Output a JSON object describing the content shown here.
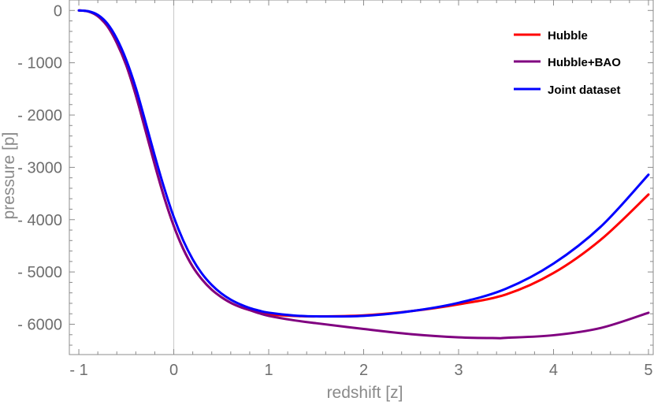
{
  "chart_data": {
    "type": "line",
    "title": "",
    "xlabel": "redshift [z]",
    "ylabel": "pressure [p]",
    "xlim": [
      -1.1,
      5.05
    ],
    "ylim": [
      -6580,
      200
    ],
    "x_ticks": [
      -1,
      0,
      1,
      2,
      3,
      4,
      5
    ],
    "x_tick_labels": [
      "- 1",
      "0",
      "1",
      "2",
      "3",
      "4",
      "5"
    ],
    "y_ticks": [
      0,
      -1000,
      -2000,
      -3000,
      -4000,
      -5000,
      -6000
    ],
    "y_tick_labels": [
      "0",
      "- 1000",
      "- 2000",
      "- 3000",
      "- 4000",
      "- 5000",
      "- 6000"
    ],
    "grid": false,
    "legend_position": "top-right",
    "series": [
      {
        "name": "Hubble",
        "color": "#ff0000",
        "x": [
          -1,
          -0.9,
          -0.8,
          -0.7,
          -0.6,
          -0.5,
          -0.4,
          -0.3,
          -0.2,
          -0.1,
          0,
          0.1,
          0.2,
          0.3,
          0.4,
          0.5,
          0.6,
          0.7,
          0.8,
          0.9,
          1.0,
          1.25,
          1.5,
          2.0,
          2.5,
          3.0,
          3.5,
          4.0,
          4.5,
          5.0
        ],
        "y": [
          0,
          -20,
          -110,
          -300,
          -620,
          -1050,
          -1620,
          -2280,
          -2950,
          -3580,
          -4120,
          -4560,
          -4900,
          -5150,
          -5340,
          -5480,
          -5590,
          -5670,
          -5730,
          -5775,
          -5810,
          -5840,
          -5850,
          -5830,
          -5750,
          -5620,
          -5430,
          -5020,
          -4380,
          -3520
        ]
      },
      {
        "name": "Hubble+BAO",
        "color": "#800080",
        "x": [
          -1,
          -0.9,
          -0.8,
          -0.7,
          -0.6,
          -0.5,
          -0.4,
          -0.3,
          -0.2,
          -0.1,
          0,
          0.1,
          0.2,
          0.3,
          0.4,
          0.5,
          0.6,
          0.7,
          0.8,
          0.9,
          1.0,
          1.25,
          1.5,
          2.0,
          2.5,
          3.0,
          3.4,
          3.5,
          4.0,
          4.5,
          5.0
        ],
        "y": [
          0,
          -20,
          -110,
          -300,
          -620,
          -1050,
          -1620,
          -2280,
          -2950,
          -3580,
          -4120,
          -4560,
          -4900,
          -5150,
          -5340,
          -5480,
          -5590,
          -5670,
          -5730,
          -5790,
          -5840,
          -5920,
          -5980,
          -6090,
          -6190,
          -6250,
          -6265,
          -6260,
          -6210,
          -6070,
          -5780
        ]
      },
      {
        "name": "Joint dataset",
        "color": "#0000ff",
        "x": [
          -1,
          -0.9,
          -0.8,
          -0.7,
          -0.6,
          -0.5,
          -0.4,
          -0.3,
          -0.2,
          -0.1,
          0,
          0.1,
          0.2,
          0.3,
          0.4,
          0.5,
          0.6,
          0.7,
          0.8,
          0.9,
          1.0,
          1.25,
          1.5,
          2.0,
          2.5,
          3.0,
          3.5,
          4.0,
          4.5,
          5.0
        ],
        "y": [
          0,
          -15,
          -85,
          -250,
          -540,
          -950,
          -1480,
          -2120,
          -2780,
          -3400,
          -3950,
          -4400,
          -4760,
          -5040,
          -5250,
          -5410,
          -5530,
          -5620,
          -5690,
          -5740,
          -5780,
          -5830,
          -5850,
          -5840,
          -5750,
          -5590,
          -5320,
          -4840,
          -4130,
          -3140
        ]
      }
    ]
  }
}
